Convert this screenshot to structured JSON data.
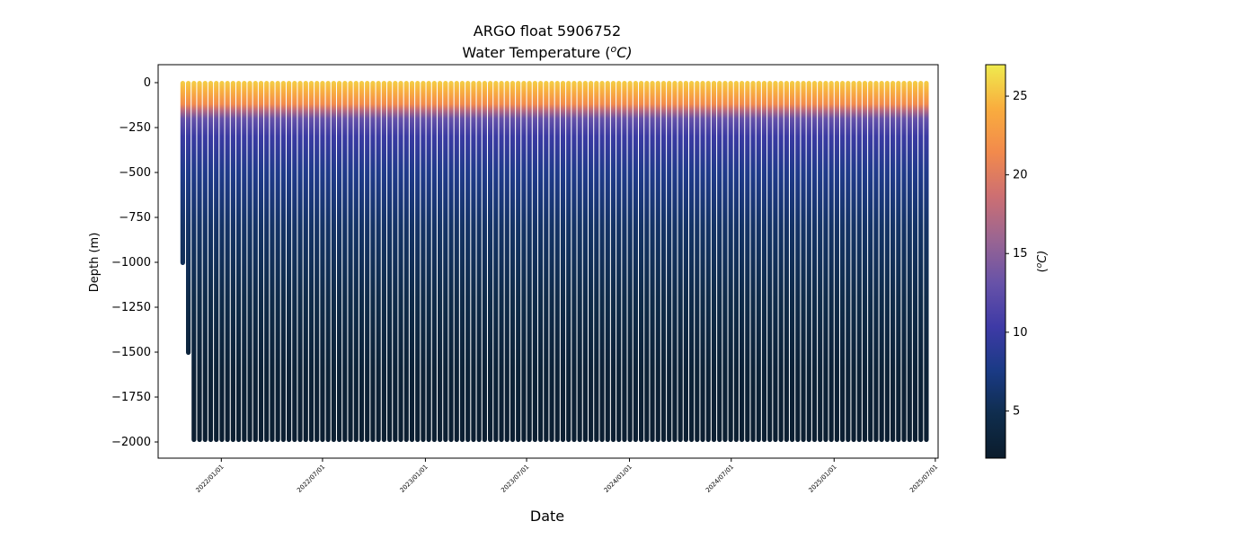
{
  "chart_data": {
    "type": "heatmap",
    "title": "ARGO float 5906752",
    "subtitle_prefix": "Water Temperature (",
    "subtitle_sup": "o",
    "subtitle_suffix": "C)",
    "xlabel": "Date",
    "ylabel": "Depth (m)",
    "colorbar_label_prefix": "(",
    "colorbar_label_sup": "o",
    "colorbar_label_suffix": "C)",
    "x_ticks": [
      "2022/01/01",
      "2022/07/01",
      "2023/01/01",
      "2023/07/01",
      "2024/01/01",
      "2024/07/01",
      "2025/01/01",
      "2025/07/01"
    ],
    "x_range": [
      "2021-09-10",
      "2025-07-06"
    ],
    "first_profile": "2021-10-24",
    "last_profile": "2025-06-18",
    "profile_interval_days": 10,
    "y_ticks": [
      0,
      -250,
      -500,
      -750,
      -1000,
      -1250,
      -1500,
      -1750,
      -2000
    ],
    "ylim": [
      -2090,
      100
    ],
    "profile_bottom_depths": [
      -1000,
      -1500
    ],
    "typical_bottom_depth": -1985,
    "colorbar_ticks": [
      5,
      10,
      15,
      20,
      25
    ],
    "colorbar_range": [
      2,
      27
    ],
    "colormap": [
      "#0b1c2c",
      "#0f2d4d",
      "#1a3a85",
      "#3e3aa6",
      "#6752a8",
      "#9a6592",
      "#cd6f72",
      "#f28a4c",
      "#f9ad3e",
      "#efeb4e"
    ],
    "temperature_profile": {
      "depths": [
        0,
        -40,
        -80,
        -120,
        -150,
        -200,
        -300,
        -500,
        -800,
        -1200,
        -1600,
        -2000
      ],
      "values": [
        25.5,
        24.5,
        23,
        21.5,
        18,
        13,
        10,
        8,
        6,
        4.5,
        3,
        2.5
      ]
    },
    "grid": false
  }
}
